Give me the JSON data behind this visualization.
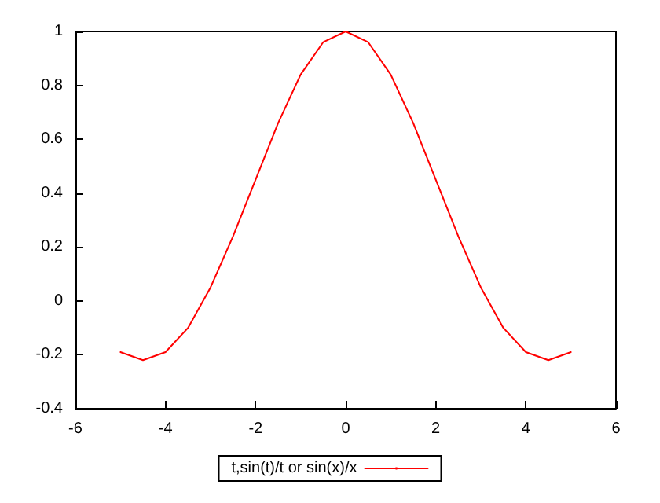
{
  "chart_data": {
    "type": "line",
    "series": [
      {
        "name": "t,sin(t)/t or sin(x)/x",
        "color": "#ff0000",
        "x": [
          -5,
          -4.5,
          -4,
          -3.5,
          -3,
          -2.5,
          -2,
          -1.5,
          -1,
          -0.5,
          0,
          0.5,
          1,
          1.5,
          2,
          2.5,
          3,
          3.5,
          4,
          4.5,
          5
        ],
        "values": [
          -0.19,
          -0.22,
          -0.19,
          -0.1,
          0.05,
          0.24,
          0.45,
          0.66,
          0.84,
          0.96,
          1,
          0.96,
          0.84,
          0.66,
          0.45,
          0.24,
          0.05,
          -0.1,
          -0.19,
          -0.22,
          -0.19
        ]
      }
    ],
    "xlim": [
      -6,
      6
    ],
    "xticks": [
      -6,
      -4,
      -2,
      0,
      2,
      4,
      6
    ],
    "ylim": [
      -0.4,
      1
    ],
    "yticks": [
      -0.4,
      -0.2,
      0,
      0.2,
      0.4,
      0.6,
      0.8,
      1
    ],
    "grid": false,
    "legend": "bottom",
    "marker": "none",
    "line_style": "solid"
  }
}
